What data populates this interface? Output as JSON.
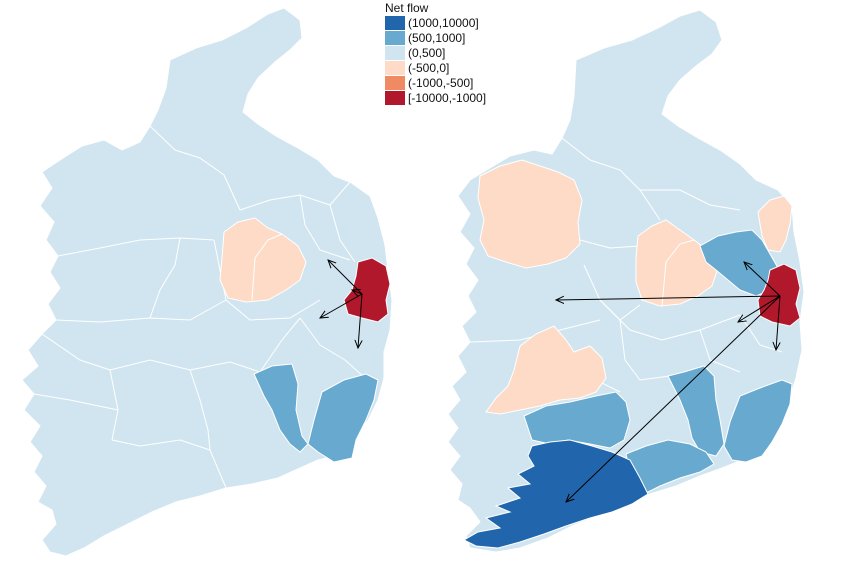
{
  "legend": {
    "title": "Net flow",
    "items": [
      {
        "label": "(1000,10000]",
        "color": "#2166ac"
      },
      {
        "label": "(500,1000]",
        "color": "#67a9cf"
      },
      {
        "label": "(0,500]",
        "color": "#d1e5f0"
      },
      {
        "label": "(-500,0]",
        "color": "#fddbc7"
      },
      {
        "label": "(-1000,-500]",
        "color": "#ef8a62"
      },
      {
        "label": "[-10000,-1000]",
        "color": "#b2182b"
      }
    ]
  },
  "maps": [
    {
      "panel": "left",
      "classed_regions": [
        {
          "region": "Dublin",
          "class": "[-10000,-1000]"
        },
        {
          "region": "Longford/Westmeath",
          "class": "(-500,0]"
        },
        {
          "region": "Kilkenny/Carlow",
          "class": "(500,1000]"
        },
        {
          "region": "Wexford",
          "class": "(500,1000]"
        }
      ],
      "default_class": "(0,500]",
      "flow_arrows_from": "Dublin",
      "flow_arrow_count": 4
    },
    {
      "panel": "right",
      "classed_regions": [
        {
          "region": "Dublin",
          "class": "[-10000,-1000]"
        },
        {
          "region": "Cork",
          "class": "(1000,10000]"
        },
        {
          "region": "Meath/Cavan",
          "class": "(500,1000]"
        },
        {
          "region": "Limerick/Tipperary",
          "class": "(500,1000]"
        },
        {
          "region": "Kilkenny",
          "class": "(500,1000]"
        },
        {
          "region": "Waterford",
          "class": "(500,1000]"
        },
        {
          "region": "Wexford",
          "class": "(500,1000]"
        },
        {
          "region": "Mayo",
          "class": "(-500,0]"
        },
        {
          "region": "Longford/Westmeath",
          "class": "(-500,0]"
        },
        {
          "region": "Clare",
          "class": "(-500,0]"
        },
        {
          "region": "Louth",
          "class": "(-500,0]"
        }
      ],
      "default_class": "(0,500]",
      "flow_arrows_from": "Dublin",
      "flow_arrow_count": 5
    }
  ]
}
